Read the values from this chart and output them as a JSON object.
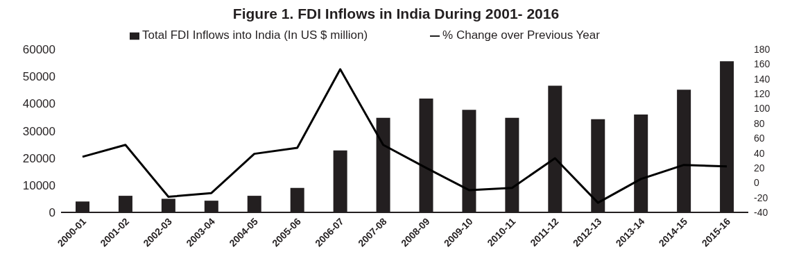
{
  "chart_data": {
    "type": "bar",
    "title": "Figure 1. FDI Inflows in India During 2001- 2016",
    "categories": [
      "2000-01",
      "2001-02",
      "2002-03",
      "2003-04",
      "2004-05",
      "2005-06",
      "2006-07",
      "2007-08",
      "2008-09",
      "2009-10",
      "2010-11",
      "2011-12",
      "2012-13",
      "2013-14",
      "2014-15",
      "2015-16"
    ],
    "series": [
      {
        "name": "Total FDI Inflows into India (In US $ million)",
        "color": "#231f20",
        "values": [
          4000,
          6100,
          5000,
          4300,
          6100,
          9000,
          22800,
          34800,
          41900,
          37700,
          34800,
          46600,
          34300,
          36000,
          45100,
          55600
        ]
      },
      {
        "name": "% Change over Previous Year",
        "type": "line",
        "axis": "y2",
        "color": "#000000",
        "values": [
          35,
          51,
          -19,
          -14,
          39,
          47,
          153,
          51,
          20,
          -10,
          -7,
          33,
          -27,
          5,
          24,
          22
        ]
      }
    ],
    "ylim": [
      0,
      60000
    ],
    "yticks": [
      0,
      10000,
      20000,
      30000,
      40000,
      50000,
      60000
    ],
    "y2lim": [
      -40,
      180
    ],
    "y2ticks": [
      -40,
      -20,
      0,
      20,
      40,
      60,
      80,
      100,
      120,
      140,
      160,
      180
    ],
    "legend": "top",
    "grid": false,
    "marker": "none",
    "line_style": "solid"
  }
}
